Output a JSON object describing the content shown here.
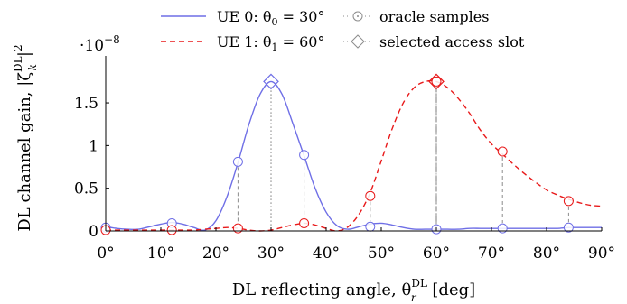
{
  "chart_data": {
    "type": "line",
    "xlabel": "DL reflecting angle, θ_r^DL [deg]",
    "xlabel_parts": {
      "main": "DL reflecting angle, θ",
      "sup": "DL",
      "sub": "r",
      "unit": " [deg]"
    },
    "ylabel": "DL channel gain, |ζ_k^DL|²",
    "ylabel_parts": {
      "main": "DL channel gain, |ζ",
      "sup": "DL",
      "sub": "k",
      "post": "|",
      "exp": "2"
    },
    "y_multiplier": "·10",
    "y_exponent": "−8",
    "xlim": [
      0,
      90
    ],
    "ylim": [
      0,
      2.05
    ],
    "x_ticks": [
      0,
      10,
      20,
      30,
      40,
      50,
      60,
      70,
      80,
      90
    ],
    "x_tick_labels": [
      "0°",
      "10°",
      "20°",
      "30°",
      "40°",
      "50°",
      "60°",
      "70°",
      "80°",
      "90°"
    ],
    "y_ticks": [
      0,
      0.5,
      1,
      1.5
    ],
    "y_tick_labels": [
      "0",
      "0.5",
      "1",
      "1.5"
    ],
    "grid": false,
    "legend_position": "top",
    "legend": [
      {
        "label": "UE 0: θ₀ = 30°",
        "label_parts": {
          "pre": "UE 0: θ",
          "sub": "0",
          "post": " = 30°"
        },
        "style": "solid",
        "color": "#6f6fe6"
      },
      {
        "label": "UE 1: θ₁ = 60°",
        "label_parts": {
          "pre": "UE 1: θ",
          "sub": "1",
          "post": " = 60°"
        },
        "style": "dashed",
        "color": "#e8191a"
      },
      {
        "label": "oracle samples",
        "marker": "circle-dot",
        "color": "#8c8c8c"
      },
      {
        "label": "selected access slot",
        "marker": "diamond",
        "color": "#8c8c8c"
      }
    ],
    "series": [
      {
        "name": "UE 0: θ₀ = 30°",
        "color": "#6f6fe6",
        "style": "solid",
        "x": [
          0,
          2,
          4,
          6,
          8,
          10,
          12,
          14,
          16,
          18,
          20,
          22,
          24,
          26,
          28,
          30,
          32,
          34,
          36,
          38,
          40,
          42,
          44,
          46,
          48,
          50,
          52,
          54,
          56,
          58,
          60,
          62,
          64,
          66,
          68,
          70,
          72,
          74,
          76,
          78,
          80,
          82,
          84,
          86,
          88,
          90
        ],
        "y": [
          0.05,
          0.03,
          0.02,
          0.02,
          0.05,
          0.08,
          0.1,
          0.08,
          0.04,
          0.01,
          0.12,
          0.4,
          0.8,
          1.25,
          1.6,
          1.75,
          1.6,
          1.25,
          0.88,
          0.5,
          0.22,
          0.06,
          0.02,
          0.05,
          0.08,
          0.09,
          0.07,
          0.04,
          0.02,
          0.02,
          0.02,
          0.02,
          0.02,
          0.03,
          0.03,
          0.03,
          0.03,
          0.03,
          0.03,
          0.03,
          0.03,
          0.03,
          0.04,
          0.04,
          0.04,
          0.04
        ]
      },
      {
        "name": "UE 1: θ₁ = 60°",
        "color": "#e8191a",
        "style": "dashed",
        "x": [
          0,
          2,
          4,
          6,
          8,
          10,
          12,
          14,
          16,
          18,
          20,
          22,
          24,
          26,
          28,
          30,
          32,
          34,
          36,
          38,
          40,
          42,
          44,
          46,
          48,
          50,
          52,
          54,
          56,
          58,
          60,
          62,
          64,
          66,
          68,
          70,
          72,
          74,
          76,
          78,
          80,
          82,
          84,
          86,
          88,
          90
        ],
        "y": [
          0.01,
          0.01,
          0.01,
          0.01,
          0.01,
          0.01,
          0.01,
          0.01,
          0.01,
          0.02,
          0.03,
          0.04,
          0.03,
          0.01,
          0.0,
          0.01,
          0.04,
          0.07,
          0.09,
          0.07,
          0.03,
          0.0,
          0.05,
          0.2,
          0.45,
          0.82,
          1.2,
          1.5,
          1.68,
          1.75,
          1.75,
          1.68,
          1.55,
          1.38,
          1.18,
          1.02,
          0.9,
          0.78,
          0.67,
          0.57,
          0.48,
          0.42,
          0.37,
          0.33,
          0.3,
          0.29
        ]
      }
    ],
    "oracle_samples": [
      {
        "x": 0,
        "y": 0.04,
        "series": "UE 0: θ₀ = 30°"
      },
      {
        "x": 12,
        "y": 0.09,
        "series": "UE 0: θ₀ = 30°"
      },
      {
        "x": 24,
        "y": 0.81,
        "series": "UE 0: θ₀ = 30°"
      },
      {
        "x": 36,
        "y": 0.89,
        "series": "UE 0: θ₀ = 30°"
      },
      {
        "x": 48,
        "y": 0.05,
        "series": "UE 0: θ₀ = 30°"
      },
      {
        "x": 60,
        "y": 0.02,
        "series": "UE 0: θ₀ = 30°"
      },
      {
        "x": 72,
        "y": 0.03,
        "series": "UE 0: θ₀ = 30°"
      },
      {
        "x": 84,
        "y": 0.04,
        "series": "UE 0: θ₀ = 30°"
      },
      {
        "x": 0,
        "y": 0.01,
        "series": "UE 1: θ₁ = 60°"
      },
      {
        "x": 12,
        "y": 0.01,
        "series": "UE 1: θ₁ = 60°"
      },
      {
        "x": 24,
        "y": 0.03,
        "series": "UE 1: θ₁ = 60°"
      },
      {
        "x": 36,
        "y": 0.09,
        "series": "UE 1: θ₁ = 60°"
      },
      {
        "x": 48,
        "y": 0.41,
        "series": "UE 1: θ₁ = 60°"
      },
      {
        "x": 60,
        "y": 1.75,
        "series": "UE 1: θ₁ = 60°"
      },
      {
        "x": 72,
        "y": 0.93,
        "series": "UE 1: θ₁ = 60°"
      },
      {
        "x": 84,
        "y": 0.35,
        "series": "UE 1: θ₁ = 60°"
      }
    ],
    "selected_access_slots": [
      {
        "x": 30,
        "y": 1.75,
        "series": "UE 0: θ₀ = 30°"
      },
      {
        "x": 60,
        "y": 1.75,
        "series": "UE 1: θ₁ = 60°"
      }
    ]
  }
}
